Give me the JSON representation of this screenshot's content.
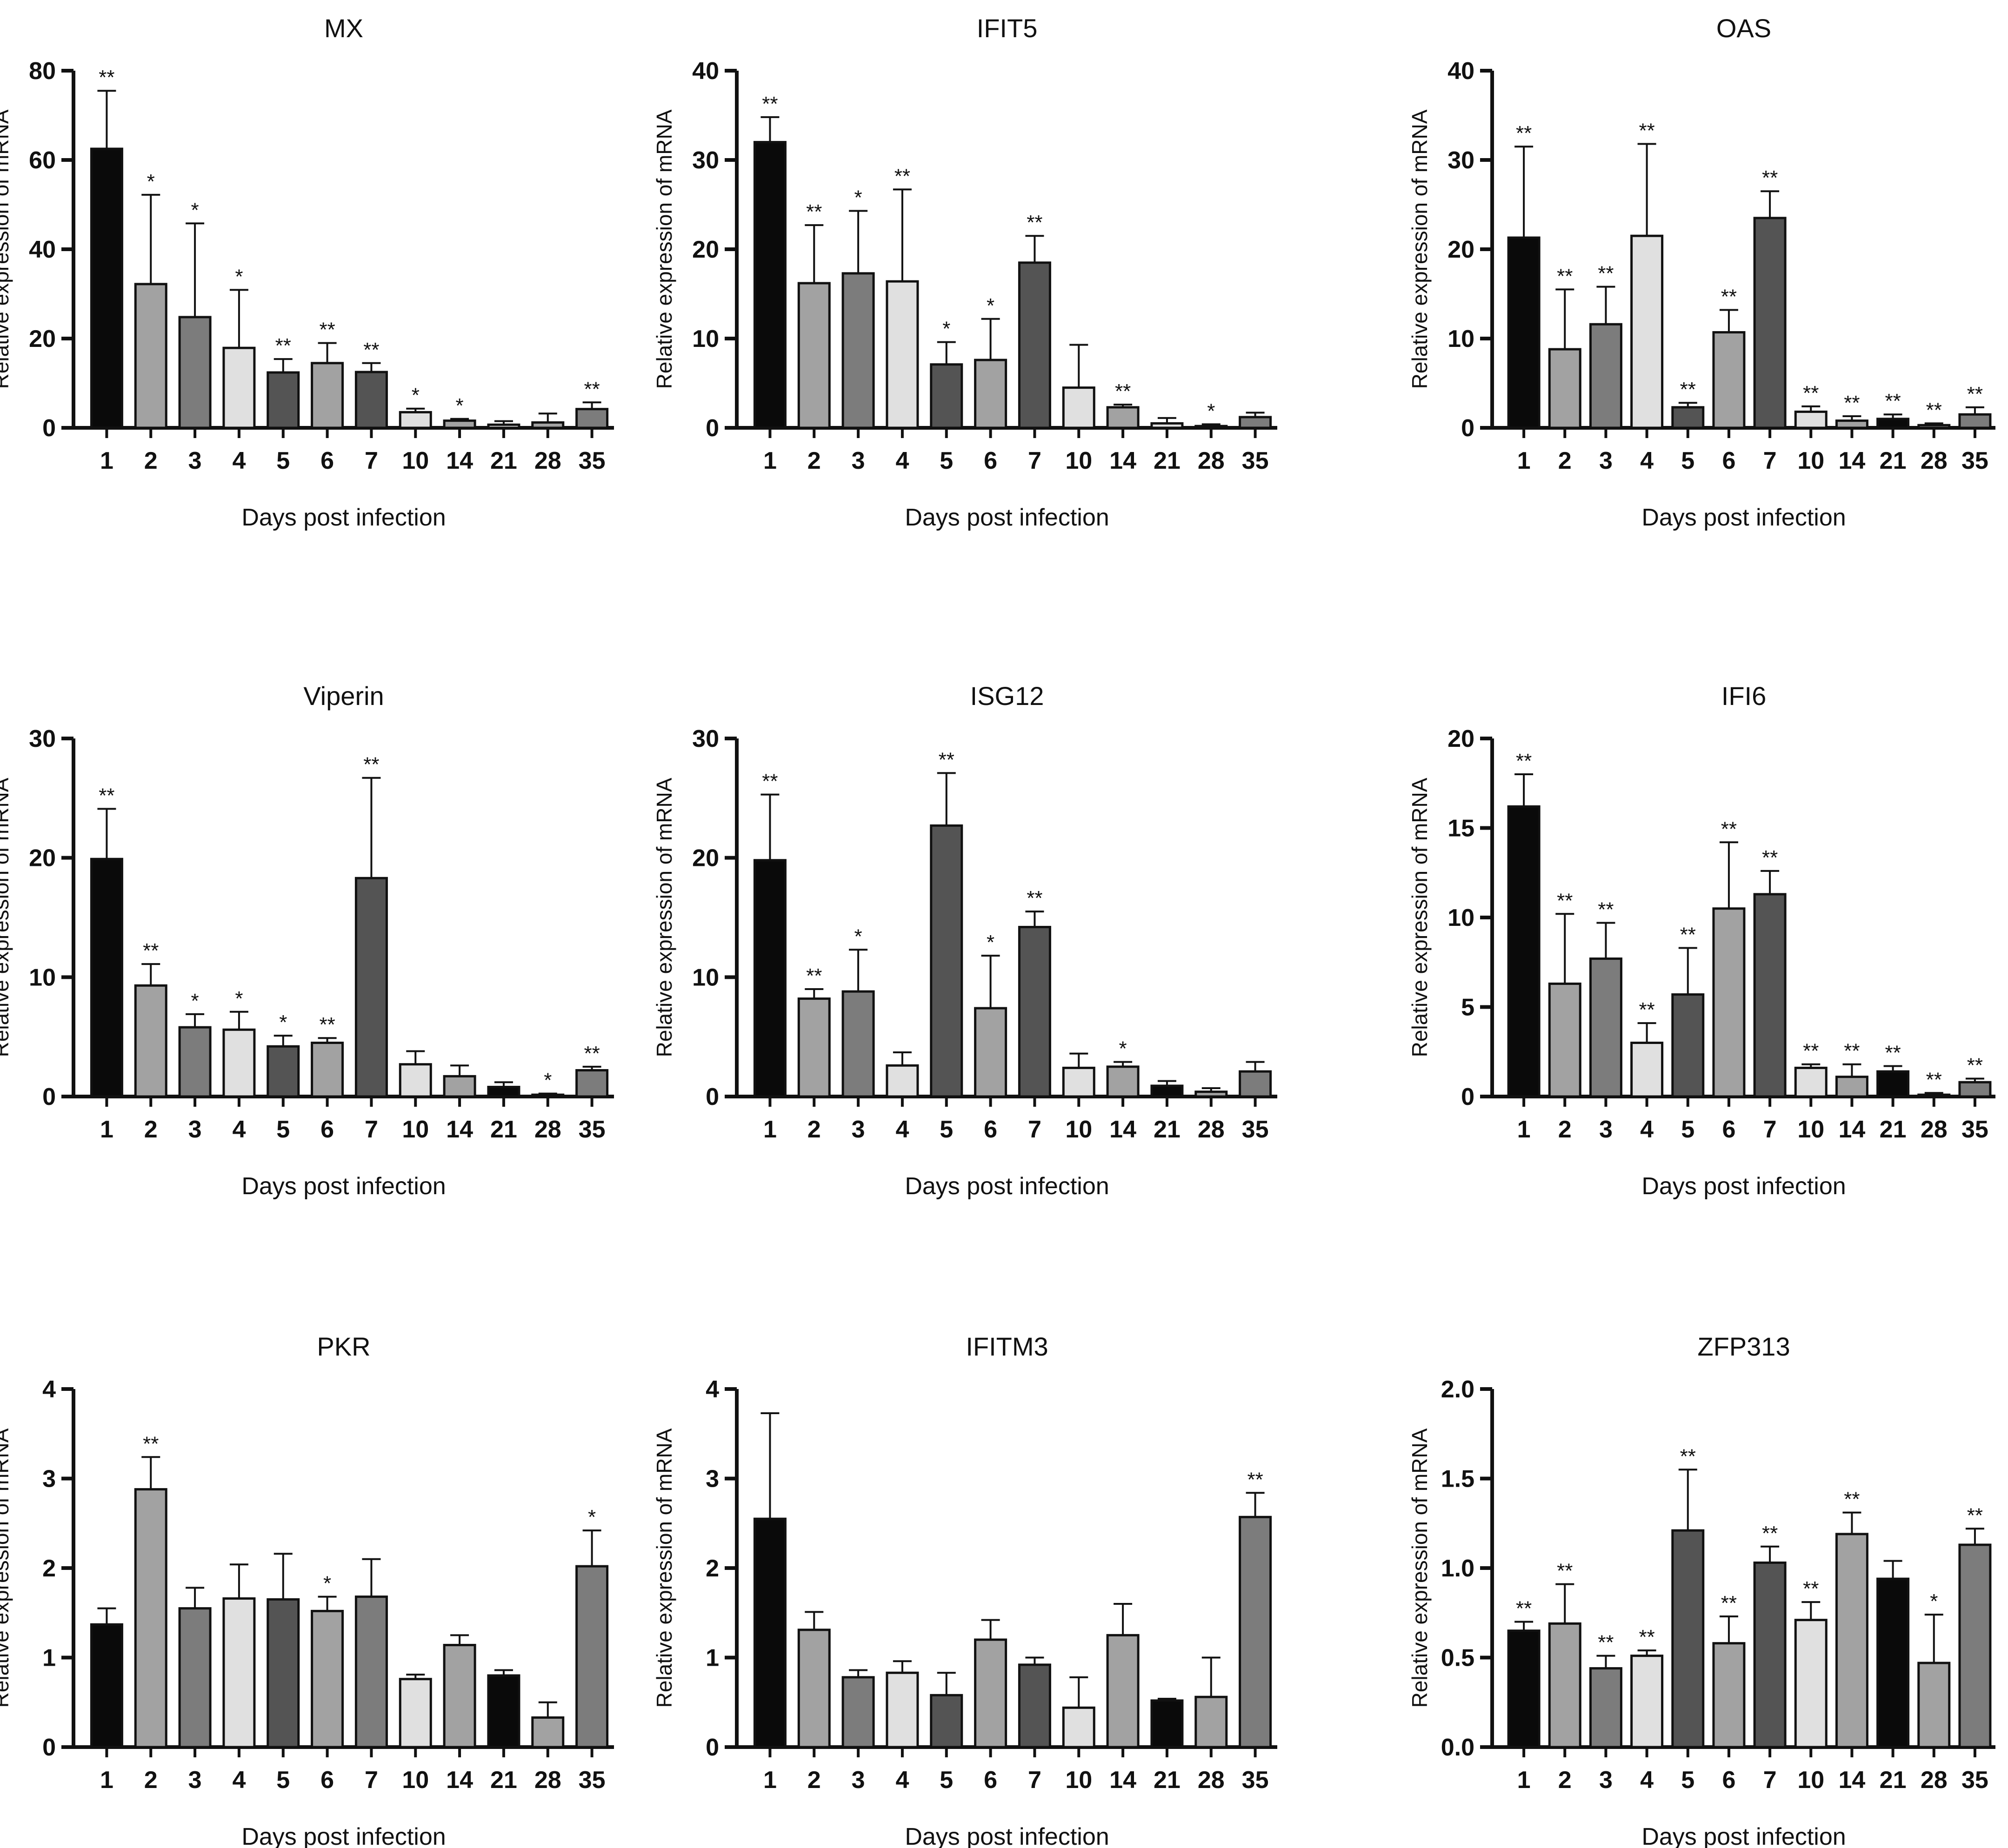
{
  "palette": {
    "black": "#0a0a0a",
    "dark": "#545454",
    "mid": "#7c7c7c",
    "gray": "#a2a2a2",
    "light": "#e0e0e0",
    "axis": "#111111"
  },
  "chart_data": [
    {
      "type": "bar",
      "title": "MX",
      "xlabel": "Days post infection",
      "ylabel": "Relative expression of mRNA",
      "ylim": [
        0,
        80
      ],
      "yticks": [
        "0",
        "20",
        "40",
        "60",
        "80"
      ],
      "categories": [
        "1",
        "2",
        "3",
        "4",
        "5",
        "6",
        "7",
        "10",
        "14",
        "21",
        "28",
        "35"
      ],
      "values": [
        62.5,
        32.2,
        24.8,
        17.9,
        12.4,
        14.5,
        12.5,
        3.5,
        1.6,
        0.7,
        1.2,
        4.2
      ],
      "errors": [
        13,
        20,
        21,
        13,
        3,
        4.5,
        2,
        0.8,
        0.4,
        0.8,
        2,
        1.5
      ],
      "significance": [
        "**",
        "*",
        "*",
        "*",
        "**",
        "**",
        "**",
        "*",
        "*",
        "",
        "",
        "**"
      ],
      "colors": [
        "black",
        "gray",
        "mid",
        "light",
        "dark",
        "gray",
        "dark",
        "light",
        "gray",
        "light",
        "gray",
        "mid"
      ]
    },
    {
      "type": "bar",
      "title": "IFIT5",
      "xlabel": "Days post infection",
      "ylabel": "Relative expression of mRNA",
      "ylim": [
        0,
        40
      ],
      "yticks": [
        "0",
        "10",
        "20",
        "30",
        "40"
      ],
      "categories": [
        "1",
        "2",
        "3",
        "4",
        "5",
        "6",
        "7",
        "10",
        "14",
        "21",
        "28",
        "35"
      ],
      "values": [
        32,
        16.2,
        17.3,
        16.4,
        7.1,
        7.6,
        18.5,
        4.5,
        2.3,
        0.5,
        0.2,
        1.2
      ],
      "errors": [
        2.8,
        6.5,
        7,
        10.3,
        2.5,
        4.6,
        3,
        4.8,
        0.3,
        0.6,
        0.2,
        0.5
      ],
      "significance": [
        "**",
        "**",
        "*",
        "**",
        "*",
        "*",
        "**",
        "",
        "**",
        "",
        "*",
        ""
      ],
      "colors": [
        "black",
        "gray",
        "mid",
        "light",
        "dark",
        "gray",
        "dark",
        "light",
        "gray",
        "light",
        "gray",
        "mid"
      ]
    },
    {
      "type": "bar",
      "title": "OAS",
      "xlabel": "Days post infection",
      "ylabel": "Relative expression of mRNA",
      "ylim": [
        0,
        40
      ],
      "yticks": [
        "0",
        "10",
        "20",
        "30",
        "40"
      ],
      "categories": [
        "1",
        "2",
        "3",
        "4",
        "5",
        "6",
        "7",
        "10",
        "14",
        "21",
        "28",
        "35"
      ],
      "values": [
        21.3,
        8.8,
        11.6,
        21.5,
        2.3,
        10.7,
        23.5,
        1.8,
        0.8,
        1,
        0.3,
        1.5
      ],
      "errors": [
        10.2,
        6.7,
        4.2,
        10.3,
        0.5,
        2.5,
        3,
        0.6,
        0.5,
        0.5,
        0.2,
        0.8
      ],
      "significance": [
        "**",
        "**",
        "**",
        "**",
        "**",
        "**",
        "**",
        "**",
        "**",
        "**",
        "**",
        "**"
      ],
      "colors": [
        "black",
        "gray",
        "mid",
        "light",
        "dark",
        "gray",
        "dark",
        "light",
        "gray",
        "black",
        "gray",
        "mid"
      ]
    },
    {
      "type": "bar",
      "title": "Viperin",
      "xlabel": "Days post infection",
      "ylabel": "Relative expression of mRNA",
      "ylim": [
        0,
        30
      ],
      "yticks": [
        "0",
        "10",
        "20",
        "30"
      ],
      "categories": [
        "1",
        "2",
        "3",
        "4",
        "5",
        "6",
        "7",
        "10",
        "14",
        "21",
        "28",
        "35"
      ],
      "values": [
        19.9,
        9.3,
        5.8,
        5.6,
        4.2,
        4.5,
        18.3,
        2.7,
        1.7,
        0.8,
        0.15,
        2.2
      ],
      "errors": [
        4.2,
        1.8,
        1.1,
        1.5,
        0.9,
        0.4,
        8.4,
        1.1,
        0.9,
        0.4,
        0.1,
        0.3
      ],
      "significance": [
        "**",
        "**",
        "*",
        "*",
        "*",
        "**",
        "**",
        "",
        "",
        "",
        "*",
        "**"
      ],
      "colors": [
        "black",
        "gray",
        "mid",
        "light",
        "dark",
        "gray",
        "dark",
        "light",
        "gray",
        "black",
        "gray",
        "mid"
      ]
    },
    {
      "type": "bar",
      "title": "ISG12",
      "xlabel": "Days post infection",
      "ylabel": "Relative expression of mRNA",
      "ylim": [
        0,
        30
      ],
      "yticks": [
        "0",
        "10",
        "20",
        "30"
      ],
      "categories": [
        "1",
        "2",
        "3",
        "4",
        "5",
        "6",
        "7",
        "10",
        "14",
        "21",
        "28",
        "35"
      ],
      "values": [
        19.8,
        8.2,
        8.8,
        2.6,
        22.7,
        7.4,
        14.2,
        2.4,
        2.5,
        0.9,
        0.4,
        2.1
      ],
      "errors": [
        5.5,
        0.8,
        3.5,
        1.1,
        4.4,
        4.4,
        1.3,
        1.2,
        0.4,
        0.4,
        0.3,
        0.8
      ],
      "significance": [
        "**",
        "**",
        "*",
        "",
        "**",
        "*",
        "**",
        "",
        "*",
        "",
        "",
        ""
      ],
      "colors": [
        "black",
        "gray",
        "mid",
        "light",
        "dark",
        "gray",
        "dark",
        "light",
        "gray",
        "black",
        "gray",
        "mid"
      ]
    },
    {
      "type": "bar",
      "title": "IFI6",
      "xlabel": "Days post infection",
      "ylabel": "Relative expression of mRNA",
      "ylim": [
        0,
        20
      ],
      "yticks": [
        "0",
        "5",
        "10",
        "15",
        "20"
      ],
      "categories": [
        "1",
        "2",
        "3",
        "4",
        "5",
        "6",
        "7",
        "10",
        "14",
        "21",
        "28",
        "35"
      ],
      "values": [
        16.2,
        6.3,
        7.7,
        3,
        5.7,
        10.5,
        11.3,
        1.6,
        1.1,
        1.4,
        0.1,
        0.8
      ],
      "errors": [
        1.8,
        3.9,
        2,
        1.1,
        2.6,
        3.7,
        1.3,
        0.2,
        0.7,
        0.3,
        0.1,
        0.2
      ],
      "significance": [
        "**",
        "**",
        "**",
        "**",
        "**",
        "**",
        "**",
        "**",
        "**",
        "**",
        "**",
        "**"
      ],
      "colors": [
        "black",
        "gray",
        "mid",
        "light",
        "dark",
        "gray",
        "dark",
        "light",
        "gray",
        "black",
        "gray",
        "mid"
      ]
    },
    {
      "type": "bar",
      "title": "PKR",
      "xlabel": "Days post infection",
      "ylabel": "Relative expression of mRNA",
      "ylim": [
        0,
        4
      ],
      "yticks": [
        "0",
        "1",
        "2",
        "3",
        "4"
      ],
      "categories": [
        "1",
        "2",
        "3",
        "4",
        "5",
        "6",
        "7",
        "10",
        "14",
        "21",
        "28",
        "35"
      ],
      "values": [
        1.37,
        2.88,
        1.55,
        1.66,
        1.65,
        1.52,
        1.68,
        0.76,
        1.14,
        0.8,
        0.33,
        2.02
      ],
      "errors": [
        0.18,
        0.36,
        0.23,
        0.38,
        0.51,
        0.16,
        0.42,
        0.05,
        0.11,
        0.06,
        0.17,
        0.4
      ],
      "significance": [
        "",
        "**",
        "",
        "",
        "",
        "*",
        "",
        "",
        "",
        "",
        "",
        "*"
      ],
      "colors": [
        "black",
        "gray",
        "mid",
        "light",
        "dark",
        "gray",
        "mid",
        "light",
        "gray",
        "black",
        "gray",
        "mid"
      ]
    },
    {
      "type": "bar",
      "title": "IFITM3",
      "xlabel": "Days post infection",
      "ylabel": "Relative expression of mRNA",
      "ylim": [
        0,
        4
      ],
      "yticks": [
        "0",
        "1",
        "2",
        "3",
        "4"
      ],
      "categories": [
        "1",
        "2",
        "3",
        "4",
        "5",
        "6",
        "7",
        "10",
        "14",
        "21",
        "28",
        "35"
      ],
      "values": [
        2.55,
        1.31,
        0.78,
        0.83,
        0.58,
        1.2,
        0.92,
        0.44,
        1.25,
        0.52,
        0.56,
        2.57
      ],
      "errors": [
        1.18,
        0.2,
        0.08,
        0.13,
        0.25,
        0.22,
        0.08,
        0.34,
        0.35,
        0.02,
        0.44,
        0.27
      ],
      "significance": [
        "",
        "",
        "",
        "",
        "",
        "",
        "",
        "",
        "",
        "",
        "",
        "**"
      ],
      "colors": [
        "black",
        "gray",
        "mid",
        "light",
        "dark",
        "gray",
        "dark",
        "light",
        "gray",
        "black",
        "gray",
        "mid"
      ]
    },
    {
      "type": "bar",
      "title": "ZFP313",
      "xlabel": "Days post infection",
      "ylabel": "Relative expression of mRNA",
      "ylim": [
        0,
        2
      ],
      "yticks": [
        "0.0",
        "0.5",
        "1.0",
        "1.5",
        "2.0"
      ],
      "categories": [
        "1",
        "2",
        "3",
        "4",
        "5",
        "6",
        "7",
        "10",
        "14",
        "21",
        "28",
        "35"
      ],
      "values": [
        0.65,
        0.69,
        0.44,
        0.51,
        1.21,
        0.58,
        1.03,
        0.71,
        1.19,
        0.94,
        0.47,
        1.13
      ],
      "errors": [
        0.05,
        0.22,
        0.07,
        0.03,
        0.34,
        0.15,
        0.09,
        0.1,
        0.12,
        0.1,
        0.27,
        0.09
      ],
      "significance": [
        "**",
        "**",
        "**",
        "**",
        "**",
        "**",
        "**",
        "**",
        "**",
        "",
        "*",
        "**"
      ],
      "colors": [
        "black",
        "gray",
        "mid",
        "light",
        "dark",
        "gray",
        "dark",
        "light",
        "gray",
        "black",
        "gray",
        "mid"
      ]
    }
  ]
}
